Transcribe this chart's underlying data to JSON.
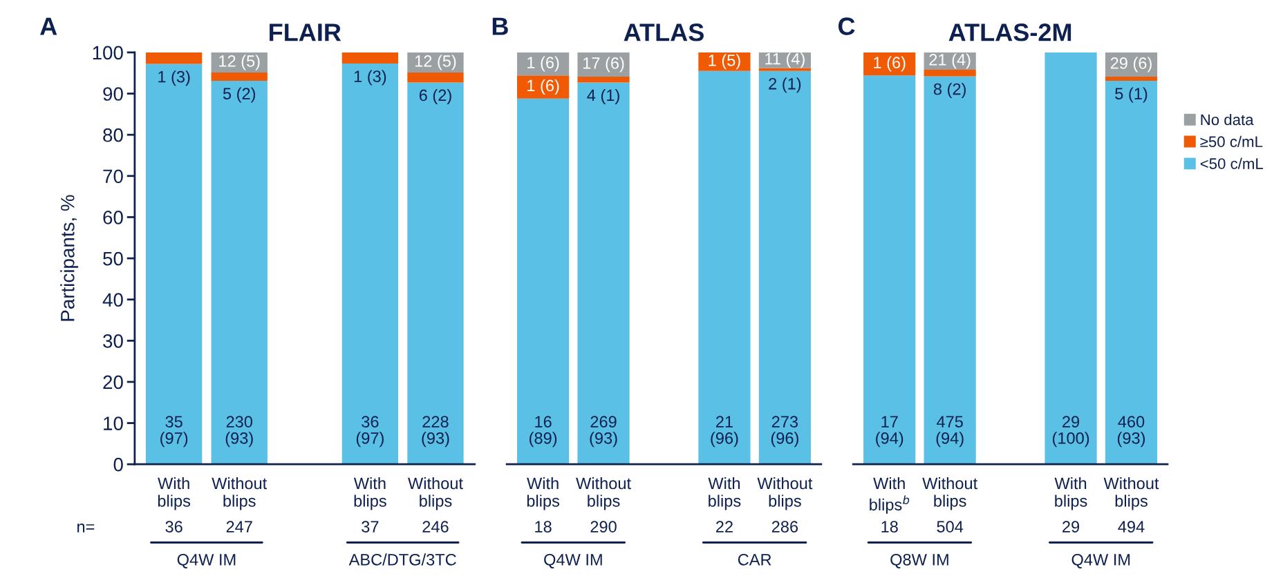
{
  "chart_data": [
    {
      "type": "bar",
      "subtitle": "A",
      "title": "FLAIR",
      "ylabel": "Participants, %",
      "stacked": true,
      "categories": [
        "With\nblips",
        "Without\nblips",
        "With\nblips",
        "Without\nblips"
      ],
      "ylim": [
        0,
        100
      ],
      "yticks": [
        0,
        10,
        20,
        30,
        40,
        50,
        60,
        70,
        80,
        90,
        100
      ],
      "series": [
        {
          "color": "#5bc0e6",
          "values": [
            97.2,
            93.1,
            97.3,
            92.7
          ],
          "value_labels": [
            "35\n(97)",
            "230\n(93)",
            "36\n(97)",
            "228\n(93)"
          ]
        },
        {
          "color": "#f05a05",
          "values": [
            2.8,
            2.0,
            2.7,
            2.4
          ],
          "value_labels": [
            "1 (3)",
            "5 (2)",
            "1 (3)",
            "6 (2)"
          ]
        },
        {
          "color": "#9ba0a3",
          "values": [
            0,
            4.9,
            0,
            4.9
          ],
          "value_labels": [
            null,
            "12 (5)",
            null,
            "12 (5)"
          ]
        }
      ],
      "annotations": [
        "n=",
        "36",
        "247",
        "37",
        "246",
        "Q4W IM",
        "ABC/DTG/3TC"
      ]
    },
    {
      "type": "bar",
      "subtitle": "B",
      "title": "ATLAS",
      "stacked": true,
      "tick_labels": "x",
      "categories": [
        "With\nblips",
        "Without\nblips",
        "With\nblips",
        "Without\nblips"
      ],
      "ylim": [
        0,
        100
      ],
      "series": [
        {
          "color": "#5bc0e6",
          "values": [
            88.8,
            92.7,
            95.5,
            95.5
          ],
          "value_labels": [
            "16\n(89)",
            "269\n(93)",
            "21\n(96)",
            "273\n(96)"
          ]
        },
        {
          "color": "#f05a05",
          "values": [
            5.6,
            1.4,
            4.5,
            0.7
          ],
          "value_labels": [
            "1 (6)",
            "4 (1)",
            "1 (5)",
            "2 (1)"
          ]
        },
        {
          "color": "#9ba0a3",
          "values": [
            5.6,
            5.9,
            0,
            3.8
          ],
          "value_labels": [
            "1 (6)",
            "17 (6)",
            null,
            "11 (4)"
          ]
        }
      ],
      "annotations": [
        "18",
        "290",
        "22",
        "286",
        "Q4W IM",
        "CAR"
      ]
    },
    {
      "type": "bar",
      "subtitle": "C",
      "title": "ATLAS-2M",
      "stacked": true,
      "tick_labels": "x",
      "legend": "right",
      "categories": [
        "With\nblips$^{b}$",
        "Without\nblips",
        "With\nblips",
        "Without\nblips"
      ],
      "ylim": [
        0,
        100
      ],
      "series": [
        {
          "name": "<50 c/mL",
          "color": "#5bc0e6",
          "values": [
            94.4,
            94.2,
            100,
            93.1
          ],
          "value_labels": [
            "17\n(94)",
            "475\n(94)",
            "29\n(100)",
            "460\n(93)"
          ]
        },
        {
          "name": "≥50 c/mL",
          "color": "#f05a05",
          "values": [
            5.6,
            1.6,
            0,
            1.0
          ],
          "value_labels": [
            "1 (6)",
            "8 (2)",
            null,
            "5 (1)"
          ]
        },
        {
          "name": "No data",
          "color": "#9ba0a3",
          "values": [
            0,
            4.2,
            0,
            5.9
          ],
          "value_labels": [
            null,
            "21 (4)",
            null,
            "29 (6)"
          ]
        }
      ],
      "annotations": [
        "18",
        "504",
        "29",
        "494",
        "Q8W IM",
        "Q4W IM"
      ]
    }
  ]
}
